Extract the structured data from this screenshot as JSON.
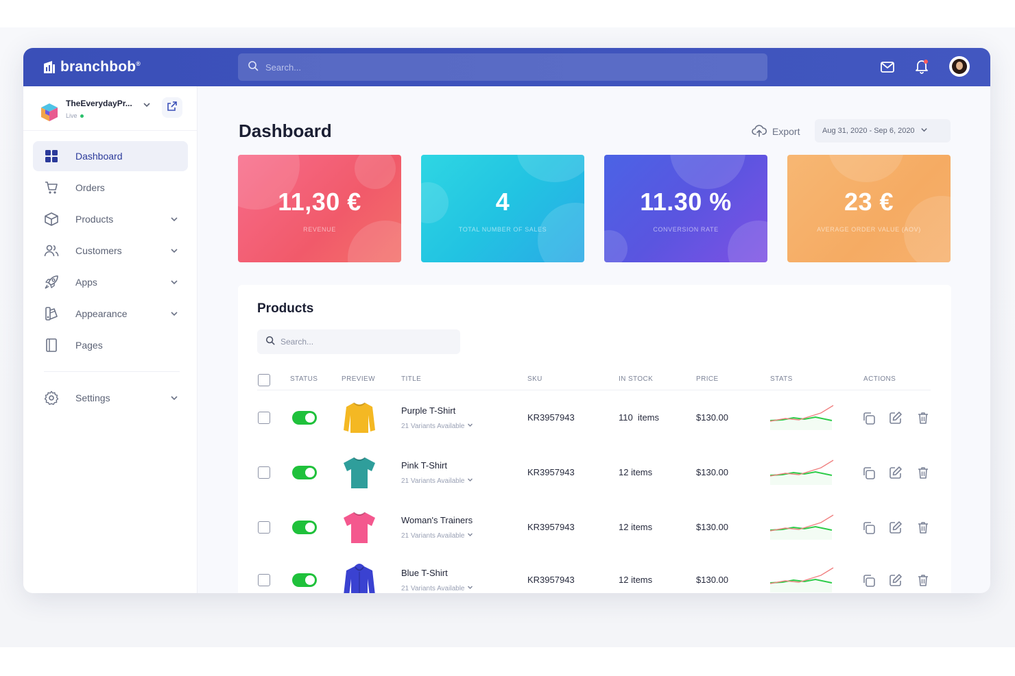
{
  "app": {
    "brand": "branchbob",
    "brand_mark": "®"
  },
  "topbar": {
    "search_placeholder": "Search...",
    "icons": [
      "mail-icon",
      "bell-icon"
    ]
  },
  "sidebar": {
    "store_name": "TheEverydayPr...",
    "store_status": "Live",
    "items": [
      {
        "label": "Dashboard",
        "icon": "grid-icon",
        "active": true,
        "expandable": false
      },
      {
        "label": "Orders",
        "icon": "cart-icon",
        "active": false,
        "expandable": false
      },
      {
        "label": "Products",
        "icon": "box-icon",
        "active": false,
        "expandable": true
      },
      {
        "label": "Customers",
        "icon": "users-icon",
        "active": false,
        "expandable": true
      },
      {
        "label": "Apps",
        "icon": "rocket-icon",
        "active": false,
        "expandable": true
      },
      {
        "label": "Appearance",
        "icon": "palette-icon",
        "active": false,
        "expandable": true
      },
      {
        "label": "Pages",
        "icon": "page-icon",
        "active": false,
        "expandable": false
      }
    ],
    "settings": {
      "label": "Settings",
      "icon": "gear-icon"
    }
  },
  "header": {
    "title": "Dashboard",
    "export_label": "Export",
    "date_range": "Aug 31, 2020 - Sep 6, 2020"
  },
  "stats": [
    {
      "value": "11,30 €",
      "label": "REVENUE",
      "color": "#f15a6a"
    },
    {
      "value": "4",
      "label": "TOTAL NUMBER OF SALES",
      "color": "#22c3e2"
    },
    {
      "value": "11.30 %",
      "label": "CONVERSION RATE",
      "color": "#5a55e0"
    },
    {
      "value": "23 €",
      "label": "AVERAGE ORDER VALUE (AOV)",
      "color": "#f5ab63"
    }
  ],
  "products": {
    "title": "Products",
    "search_placeholder": "Search...",
    "columns": [
      "STATUS",
      "PREVIEW",
      "TITLE",
      "SKU",
      "IN STOCK",
      "PRICE",
      "STATS",
      "ACTIONS"
    ],
    "rows": [
      {
        "title": "Purple T-Shirt",
        "variants": "21 Variants Available",
        "sku": "KR3957943",
        "stock": "110  items",
        "price": "$130.00",
        "status": true,
        "shirt_color": "#f4b823",
        "shirt": "sweater"
      },
      {
        "title": "Pink T-Shirt",
        "variants": "21 Variants Available",
        "sku": "KR3957943",
        "stock": "12 items",
        "price": "$130.00",
        "status": true,
        "shirt_color": "#2f9e9b",
        "shirt": "tee"
      },
      {
        "title": "Woman's Trainers",
        "variants": "21 Variants Available",
        "sku": "KR3957943",
        "stock": "12 items",
        "price": "$130.00",
        "status": true,
        "shirt_color": "#f4588e",
        "shirt": "tee"
      },
      {
        "title": "Blue T-Shirt",
        "variants": "21 Variants Available",
        "sku": "KR3957943",
        "stock": "12 items",
        "price": "$130.00",
        "status": true,
        "shirt_color": "#3a42d1",
        "shirt": "hoodie"
      }
    ]
  },
  "colors": {
    "topbar": "#3f51b5",
    "toggle_on": "#1fc13b",
    "spark_green": "#2ecc4a",
    "spark_red": "#f08080"
  }
}
